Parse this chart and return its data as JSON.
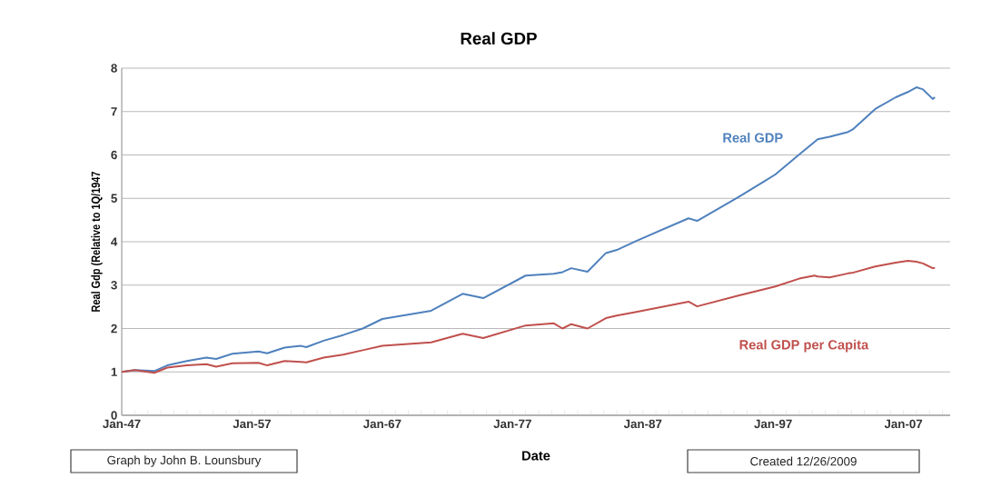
{
  "chart_data": {
    "type": "line",
    "title": "Real GDP",
    "xlabel": "Date",
    "ylabel": "Real Gdp (Relative to 1Q/1947",
    "x": [
      "1947-01",
      "1948-01",
      "1949-07",
      "1950-07",
      "1952-01",
      "1953-07",
      "1954-04",
      "1955-07",
      "1957-07",
      "1958-03",
      "1959-07",
      "1960-10",
      "1961-03",
      "1962-07",
      "1964-01",
      "1965-07",
      "1967-01",
      "1970-10",
      "1973-03",
      "1974-10",
      "1978-01",
      "1980-03",
      "1980-11",
      "1981-07",
      "1982-10",
      "1984-03",
      "1985-01",
      "1986-07",
      "1990-07",
      "1991-03",
      "1994-05",
      "1996-04",
      "1997-03",
      "1999-01",
      "2000-03",
      "2000-06",
      "2001-05",
      "2002-10",
      "2003-03",
      "2004-11",
      "2006-06",
      "2007-05",
      "2008-01",
      "2008-07",
      "2009-04",
      "2009-06"
    ],
    "series": [
      {
        "name": "Real GDP",
        "color": "#4f81bd",
        "values": [
          1.0,
          1.04,
          1.02,
          1.15,
          1.25,
          1.33,
          1.3,
          1.42,
          1.47,
          1.43,
          1.56,
          1.6,
          1.57,
          1.72,
          1.85,
          2.0,
          2.22,
          2.41,
          2.8,
          2.7,
          3.22,
          3.26,
          3.3,
          3.39,
          3.31,
          3.74,
          3.81,
          4.02,
          4.54,
          4.48,
          5.03,
          5.38,
          5.55,
          6.01,
          6.3,
          6.36,
          6.42,
          6.53,
          6.6,
          7.06,
          7.33,
          7.45,
          7.56,
          7.51,
          7.29,
          7.33
        ]
      },
      {
        "name": "Real GDP per Capita",
        "color": "#c0504d",
        "values": [
          1.0,
          1.04,
          0.98,
          1.1,
          1.15,
          1.18,
          1.12,
          1.2,
          1.21,
          1.15,
          1.25,
          1.23,
          1.22,
          1.33,
          1.4,
          1.5,
          1.6,
          1.68,
          1.88,
          1.78,
          2.07,
          2.12,
          2.0,
          2.1,
          2.0,
          2.24,
          2.3,
          2.38,
          2.62,
          2.51,
          2.76,
          2.9,
          2.97,
          3.15,
          3.22,
          3.2,
          3.18,
          3.27,
          3.29,
          3.43,
          3.52,
          3.56,
          3.54,
          3.5,
          3.39,
          3.4
        ]
      }
    ],
    "xlim": [
      "1947-01",
      "2010-08"
    ],
    "xticks": [
      {
        "value": "1947-01",
        "label": "Jan-47"
      },
      {
        "value": "1957-01",
        "label": "Jan-57"
      },
      {
        "value": "1967-01",
        "label": "Jan-67"
      },
      {
        "value": "1977-01",
        "label": "Jan-77"
      },
      {
        "value": "1987-01",
        "label": "Jan-87"
      },
      {
        "value": "1997-01",
        "label": "Jan-97"
      },
      {
        "value": "2007-01",
        "label": "Jan-07"
      },
      {
        "value": "1948-01",
        "label": null
      },
      {
        "value": "1949-01",
        "label": null
      },
      {
        "value": "1950-01",
        "label": null
      },
      {
        "value": "1951-01",
        "label": null
      },
      {
        "value": "1952-01",
        "label": null
      },
      {
        "value": "1953-01",
        "label": null
      },
      {
        "value": "1954-01",
        "label": null
      },
      {
        "value": "1955-01",
        "label": null
      },
      {
        "value": "1956-01",
        "label": null
      },
      {
        "value": "1958-01",
        "label": null
      },
      {
        "value": "1959-01",
        "label": null
      },
      {
        "value": "1960-01",
        "label": null
      },
      {
        "value": "1961-01",
        "label": null
      },
      {
        "value": "1962-01",
        "label": null
      },
      {
        "value": "1963-01",
        "label": null
      },
      {
        "value": "1964-01",
        "label": null
      },
      {
        "value": "1965-01",
        "label": null
      },
      {
        "value": "1966-01",
        "label": null
      },
      {
        "value": "1968-01",
        "label": null
      },
      {
        "value": "1969-01",
        "label": null
      },
      {
        "value": "1970-01",
        "label": null
      },
      {
        "value": "1971-01",
        "label": null
      },
      {
        "value": "1972-01",
        "label": null
      },
      {
        "value": "1973-01",
        "label": null
      },
      {
        "value": "1974-01",
        "label": null
      },
      {
        "value": "1975-01",
        "label": null
      },
      {
        "value": "1976-01",
        "label": null
      },
      {
        "value": "1978-01",
        "label": null
      },
      {
        "value": "1979-01",
        "label": null
      },
      {
        "value": "1980-01",
        "label": null
      },
      {
        "value": "1981-01",
        "label": null
      },
      {
        "value": "1982-01",
        "label": null
      },
      {
        "value": "1983-01",
        "label": null
      },
      {
        "value": "1984-01",
        "label": null
      },
      {
        "value": "1985-01",
        "label": null
      },
      {
        "value": "1986-01",
        "label": null
      },
      {
        "value": "1988-01",
        "label": null
      },
      {
        "value": "1989-01",
        "label": null
      },
      {
        "value": "1990-01",
        "label": null
      },
      {
        "value": "1991-01",
        "label": null
      },
      {
        "value": "1992-01",
        "label": null
      },
      {
        "value": "1993-01",
        "label": null
      },
      {
        "value": "1994-01",
        "label": null
      },
      {
        "value": "1995-01",
        "label": null
      },
      {
        "value": "1996-01",
        "label": null
      },
      {
        "value": "1998-01",
        "label": null
      },
      {
        "value": "1999-01",
        "label": null
      },
      {
        "value": "2000-01",
        "label": null
      },
      {
        "value": "2001-01",
        "label": null
      },
      {
        "value": "2002-01",
        "label": null
      },
      {
        "value": "2003-01",
        "label": null
      },
      {
        "value": "2004-01",
        "label": null
      },
      {
        "value": "2005-01",
        "label": null
      },
      {
        "value": "2006-01",
        "label": null
      },
      {
        "value": "2008-01",
        "label": null
      },
      {
        "value": "2009-01",
        "label": null
      },
      {
        "value": "2010-01",
        "label": null
      }
    ],
    "ylim": [
      0,
      8
    ],
    "yticks": [
      0,
      1,
      2,
      3,
      4,
      5,
      6,
      7,
      8
    ],
    "grid": "y",
    "marker": "none",
    "line_style": "solid",
    "annotations": [
      "Graph by John B. Lounsbury",
      "Created 12/26/2009"
    ]
  }
}
